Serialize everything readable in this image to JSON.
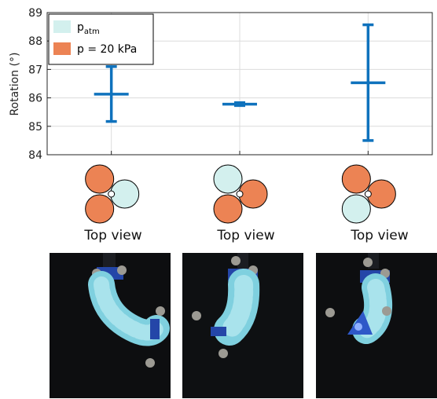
{
  "chart_data": {
    "type": "errorbar",
    "ylabel": "Rotation (°)",
    "ylim": [
      84,
      89
    ],
    "yticks": [
      84,
      85,
      86,
      87,
      88,
      89
    ],
    "grid": true,
    "legend_position": "top-left",
    "legend": [
      {
        "label_main": "p",
        "label_sub": "atm",
        "color": "#d3f0ee"
      },
      {
        "label_main": "p = 20 kPa",
        "label_sub": "",
        "color": "#ec8354"
      }
    ],
    "series_color": "#0f72bd",
    "points": [
      {
        "mean": 86.13,
        "lower": 85.17,
        "upper": 87.1
      },
      {
        "mean": 85.78,
        "lower": 85.73,
        "upper": 85.83
      },
      {
        "mean": 86.53,
        "lower": 84.5,
        "upper": 88.57
      }
    ]
  },
  "configs": [
    {
      "view_label": "Top view",
      "circles": [
        "pressurized",
        "atmospheric",
        "pressurized"
      ]
    },
    {
      "view_label": "Top view",
      "circles": [
        "atmospheric",
        "pressurized",
        "pressurized"
      ]
    },
    {
      "view_label": "Top view",
      "circles": [
        "pressurized",
        "pressurized",
        "atmospheric"
      ]
    }
  ],
  "photos": [
    {
      "subject": "soft-actuator-photo"
    },
    {
      "subject": "soft-actuator-photo"
    },
    {
      "subject": "soft-actuator-photo"
    }
  ]
}
